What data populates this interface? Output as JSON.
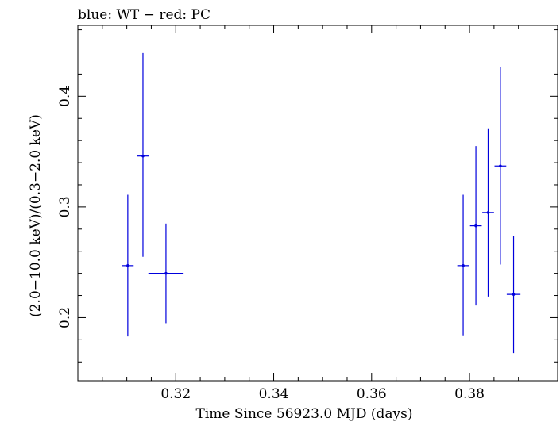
{
  "chart_data": {
    "type": "scatter",
    "title": "blue: WT − red: PC",
    "xlabel": "Time Since 56923.0 MJD (days)",
    "ylabel": "(2.0−10.0 keV)/(0.3−2.0 keV)",
    "xlim": [
      0.3,
      0.398
    ],
    "ylim": [
      0.143,
      0.464
    ],
    "x_ticks": [
      0.32,
      0.34,
      0.36,
      0.38
    ],
    "x_tick_labels": [
      "0.32",
      "0.34",
      "0.36",
      "0.38"
    ],
    "y_ticks": [
      0.2,
      0.3,
      0.4
    ],
    "y_tick_labels": [
      "0.2",
      "0.3",
      "0.4"
    ],
    "grid": false,
    "series": [
      {
        "name": "WT",
        "color": "#0000dd",
        "points": [
          {
            "x": 0.3102,
            "y": 0.247,
            "xerr": 0.0012,
            "ylo": 0.183,
            "yhi": 0.311
          },
          {
            "x": 0.3133,
            "y": 0.346,
            "xerr": 0.0012,
            "ylo": 0.255,
            "yhi": 0.439
          },
          {
            "x": 0.318,
            "y": 0.24,
            "xerr": 0.0036,
            "ylo": 0.195,
            "yhi": 0.285
          },
          {
            "x": 0.3787,
            "y": 0.247,
            "xerr": 0.0012,
            "ylo": 0.184,
            "yhi": 0.311
          },
          {
            "x": 0.3813,
            "y": 0.283,
            "xerr": 0.0012,
            "ylo": 0.211,
            "yhi": 0.355
          },
          {
            "x": 0.3838,
            "y": 0.295,
            "xerr": 0.0012,
            "ylo": 0.219,
            "yhi": 0.371
          },
          {
            "x": 0.3863,
            "y": 0.337,
            "xerr": 0.0012,
            "ylo": 0.248,
            "yhi": 0.426
          },
          {
            "x": 0.389,
            "y": 0.221,
            "xerr": 0.0014,
            "ylo": 0.168,
            "yhi": 0.274
          }
        ]
      }
    ]
  }
}
